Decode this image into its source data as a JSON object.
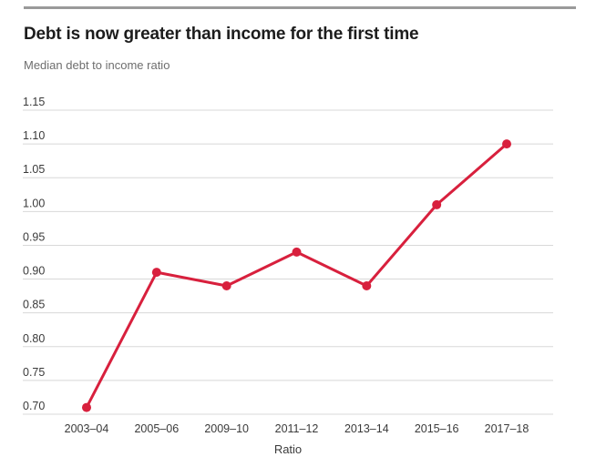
{
  "chart_data": {
    "type": "line",
    "title": "Debt is now greater than income for the first time",
    "subtitle": "Median debt to income ratio",
    "xlabel": "Ratio",
    "ylabel": "",
    "categories": [
      "2003–04",
      "2005–06",
      "2009–10",
      "2011–12",
      "2013–14",
      "2015–16",
      "2017–18"
    ],
    "values": [
      0.71,
      0.91,
      0.89,
      0.94,
      0.89,
      1.01,
      1.1
    ],
    "yticks": [
      0.7,
      0.75,
      0.8,
      0.85,
      0.9,
      0.95,
      1.0,
      1.05,
      1.1,
      1.15
    ],
    "ylim": [
      0.7,
      1.15
    ],
    "grid": true,
    "legend": false,
    "marker": "circle",
    "colors": {
      "line": "#d8203d",
      "grid": "#d8d8d8",
      "tick_text": "#3a3a3a",
      "title_text": "#1c1c1c",
      "subtitle_text": "#6e6e6e",
      "top_rule": "#9a9a9a"
    }
  }
}
